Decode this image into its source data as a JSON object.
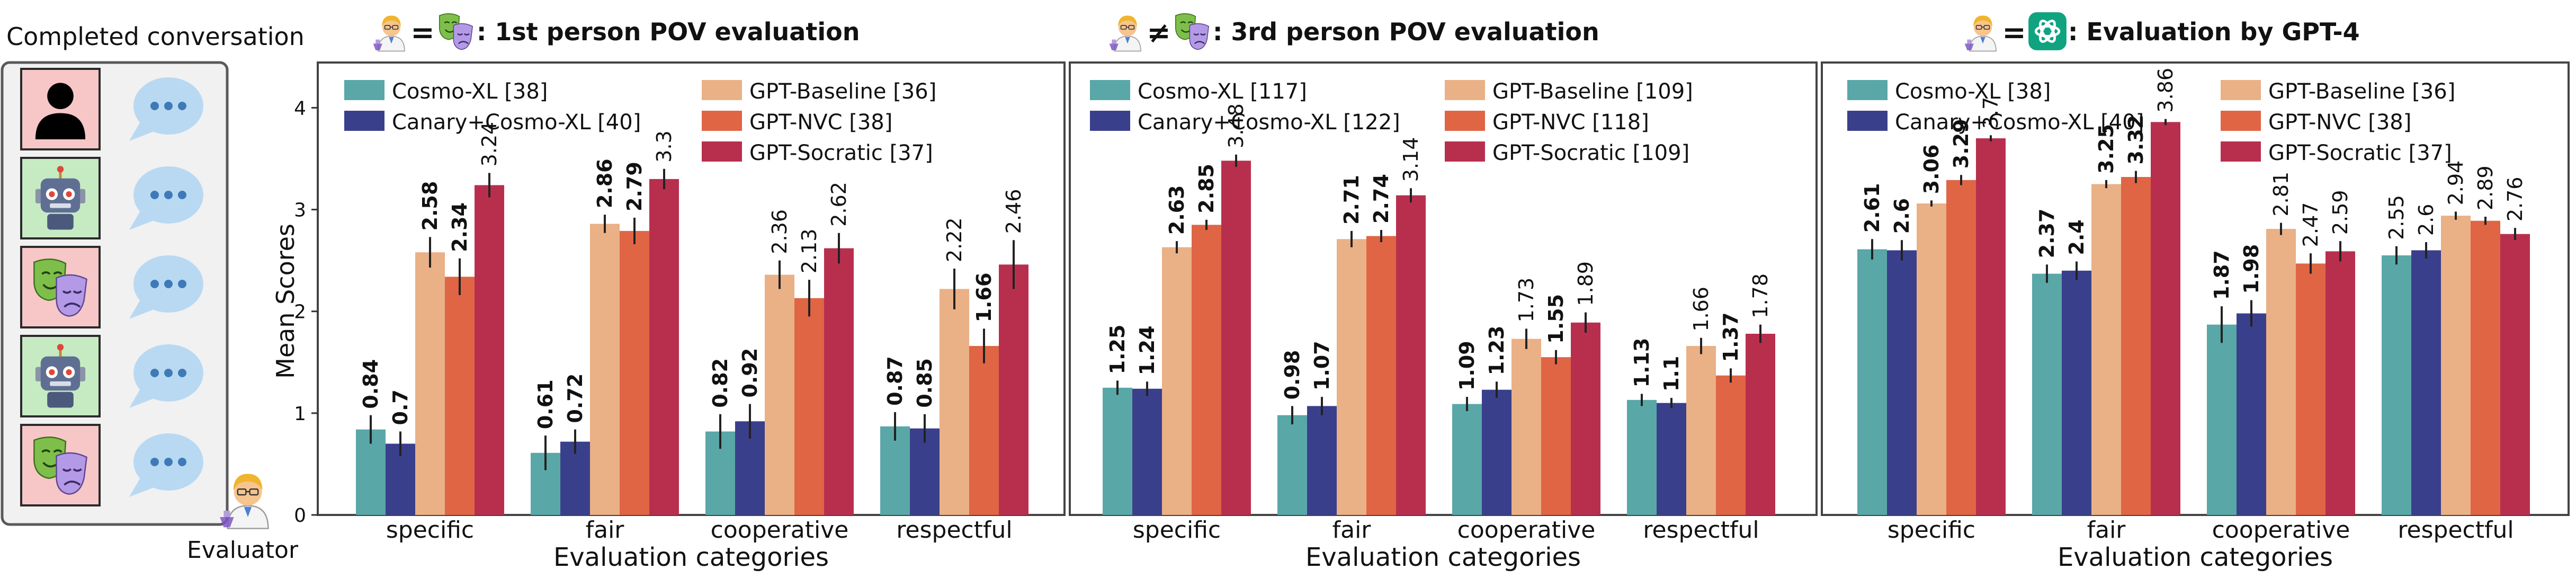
{
  "convo": {
    "title": "Completed conversation",
    "evaluator": "Evaluator"
  },
  "colors": {
    "Cosmo-XL": "#5aa7a8",
    "Canary+Cosmo-XL": "#3a3f8c",
    "GPT-Baseline": "#eab086",
    "GPT-NVC": "#df6545",
    "GPT-Socratic": "#b82f4e"
  },
  "chart_data": [
    {
      "type": "bar",
      "title": ": 1st person POV evaluation",
      "relation": "=",
      "ylabel": "Mean Scores",
      "xlabel": "Evaluation categories",
      "ylim": [
        0,
        4.2
      ],
      "yticks": [
        0,
        1,
        2,
        3,
        4
      ],
      "categories": [
        "specific",
        "fair",
        "cooperative",
        "respectful"
      ],
      "series": [
        {
          "name": "Cosmo-XL [38]",
          "values": [
            0.84,
            0.61,
            0.82,
            0.87
          ],
          "labels": [
            "0.84",
            "0.61",
            "0.82",
            "0.87"
          ],
          "bold": [
            true,
            true,
            true,
            true
          ],
          "err": [
            0.14,
            0.17,
            0.17,
            0.14
          ]
        },
        {
          "name": "Canary+Cosmo-XL [40]",
          "values": [
            0.7,
            0.72,
            0.92,
            0.85
          ],
          "labels": [
            "0.7",
            "0.72",
            "0.92",
            "0.85"
          ],
          "bold": [
            true,
            true,
            true,
            true
          ],
          "err": [
            0.12,
            0.12,
            0.17,
            0.14
          ]
        },
        {
          "name": "GPT-Baseline [36]",
          "values": [
            2.58,
            2.86,
            2.36,
            2.22
          ],
          "labels": [
            "2.58",
            "2.86",
            "2.36",
            "2.22"
          ],
          "bold": [
            true,
            true,
            false,
            false
          ],
          "err": [
            0.15,
            0.09,
            0.14,
            0.2
          ]
        },
        {
          "name": "GPT-NVC [38]",
          "values": [
            2.34,
            2.79,
            2.13,
            1.66
          ],
          "labels": [
            "2.34",
            "2.79",
            "2.13",
            "1.66"
          ],
          "bold": [
            true,
            true,
            false,
            true
          ],
          "err": [
            0.18,
            0.13,
            0.18,
            0.17
          ]
        },
        {
          "name": "GPT-Socratic [37]",
          "values": [
            3.24,
            3.3,
            2.62,
            2.46
          ],
          "labels": [
            "3.24",
            "3.3",
            "2.62",
            "2.46"
          ],
          "bold": [
            false,
            false,
            false,
            false
          ],
          "err": [
            0.12,
            0.1,
            0.15,
            0.24
          ]
        }
      ]
    },
    {
      "type": "bar",
      "title": ": 3rd person POV evaluation",
      "relation": "≠",
      "ylabel": "",
      "xlabel": "Evaluation categories",
      "ylim": [
        0,
        4.2
      ],
      "yticks": [],
      "categories": [
        "specific",
        "fair",
        "cooperative",
        "respectful"
      ],
      "series": [
        {
          "name": "Cosmo-XL [117]",
          "values": [
            1.25,
            0.98,
            1.09,
            1.13
          ],
          "labels": [
            "1.25",
            "0.98",
            "1.09",
            "1.13"
          ],
          "bold": [
            true,
            true,
            true,
            true
          ],
          "err": [
            0.07,
            0.09,
            0.07,
            0.06
          ]
        },
        {
          "name": "Canary+Cosmo-XL [122]",
          "values": [
            1.24,
            1.07,
            1.23,
            1.1
          ],
          "labels": [
            "1.24",
            "1.07",
            "1.23",
            "1.1"
          ],
          "bold": [
            true,
            true,
            true,
            true
          ],
          "err": [
            0.07,
            0.09,
            0.08,
            0.05
          ]
        },
        {
          "name": "GPT-Baseline [109]",
          "values": [
            2.63,
            2.71,
            1.73,
            1.66
          ],
          "labels": [
            "2.63",
            "2.71",
            "1.73",
            "1.66"
          ],
          "bold": [
            true,
            true,
            false,
            false
          ],
          "err": [
            0.06,
            0.08,
            0.1,
            0.08
          ]
        },
        {
          "name": "GPT-NVC [118]",
          "values": [
            2.85,
            2.74,
            1.55,
            1.37
          ],
          "labels": [
            "2.85",
            "2.74",
            "1.55",
            "1.37"
          ],
          "bold": [
            true,
            true,
            true,
            true
          ],
          "err": [
            0.05,
            0.06,
            0.07,
            0.07
          ]
        },
        {
          "name": "GPT-Socratic [109]",
          "values": [
            3.48,
            3.14,
            1.89,
            1.78
          ],
          "labels": [
            "3.48",
            "3.14",
            "1.89",
            "1.78"
          ],
          "bold": [
            false,
            false,
            false,
            false
          ],
          "err": [
            0.06,
            0.07,
            0.1,
            0.09
          ]
        }
      ]
    },
    {
      "type": "bar",
      "title": ": Evaluation by GPT-4",
      "relation": "=",
      "ylabel": "",
      "xlabel": "Evaluation categories",
      "ylim": [
        0,
        4.2
      ],
      "yticks": [],
      "categories": [
        "specific",
        "fair",
        "cooperative",
        "respectful"
      ],
      "series": [
        {
          "name": "Cosmo-XL [38]",
          "values": [
            2.61,
            2.37,
            1.87,
            2.55
          ],
          "labels": [
            "2.61",
            "2.37",
            "1.87",
            "2.55"
          ],
          "bold": [
            true,
            true,
            true,
            false
          ],
          "err": [
            0.1,
            0.09,
            0.18,
            0.09
          ]
        },
        {
          "name": "Canary+Cosmo-XL [40]",
          "values": [
            2.6,
            2.4,
            1.98,
            2.6
          ],
          "labels": [
            "2.6",
            "2.4",
            "1.98",
            "2.6"
          ],
          "bold": [
            true,
            true,
            true,
            false
          ],
          "err": [
            0.1,
            0.09,
            0.13,
            0.08
          ]
        },
        {
          "name": "GPT-Baseline [36]",
          "values": [
            3.06,
            3.25,
            2.81,
            2.94
          ],
          "labels": [
            "3.06",
            "3.25",
            "2.81",
            "2.94"
          ],
          "bold": [
            true,
            true,
            false,
            false
          ],
          "err": [
            0.03,
            0.04,
            0.06,
            0.04
          ]
        },
        {
          "name": "GPT-NVC [38]",
          "values": [
            3.29,
            3.32,
            2.47,
            2.89
          ],
          "labels": [
            "3.29",
            "3.32",
            "2.47",
            "2.89"
          ],
          "bold": [
            true,
            true,
            false,
            false
          ],
          "err": [
            0.05,
            0.06,
            0.1,
            0.04
          ]
        },
        {
          "name": "GPT-Socratic [37]",
          "values": [
            3.7,
            3.86,
            2.59,
            2.76
          ],
          "labels": [
            "3.7",
            "3.86",
            "2.59",
            "2.76"
          ],
          "bold": [
            false,
            false,
            false,
            false
          ],
          "err": [
            0.03,
            0.03,
            0.1,
            0.06
          ]
        }
      ]
    }
  ]
}
